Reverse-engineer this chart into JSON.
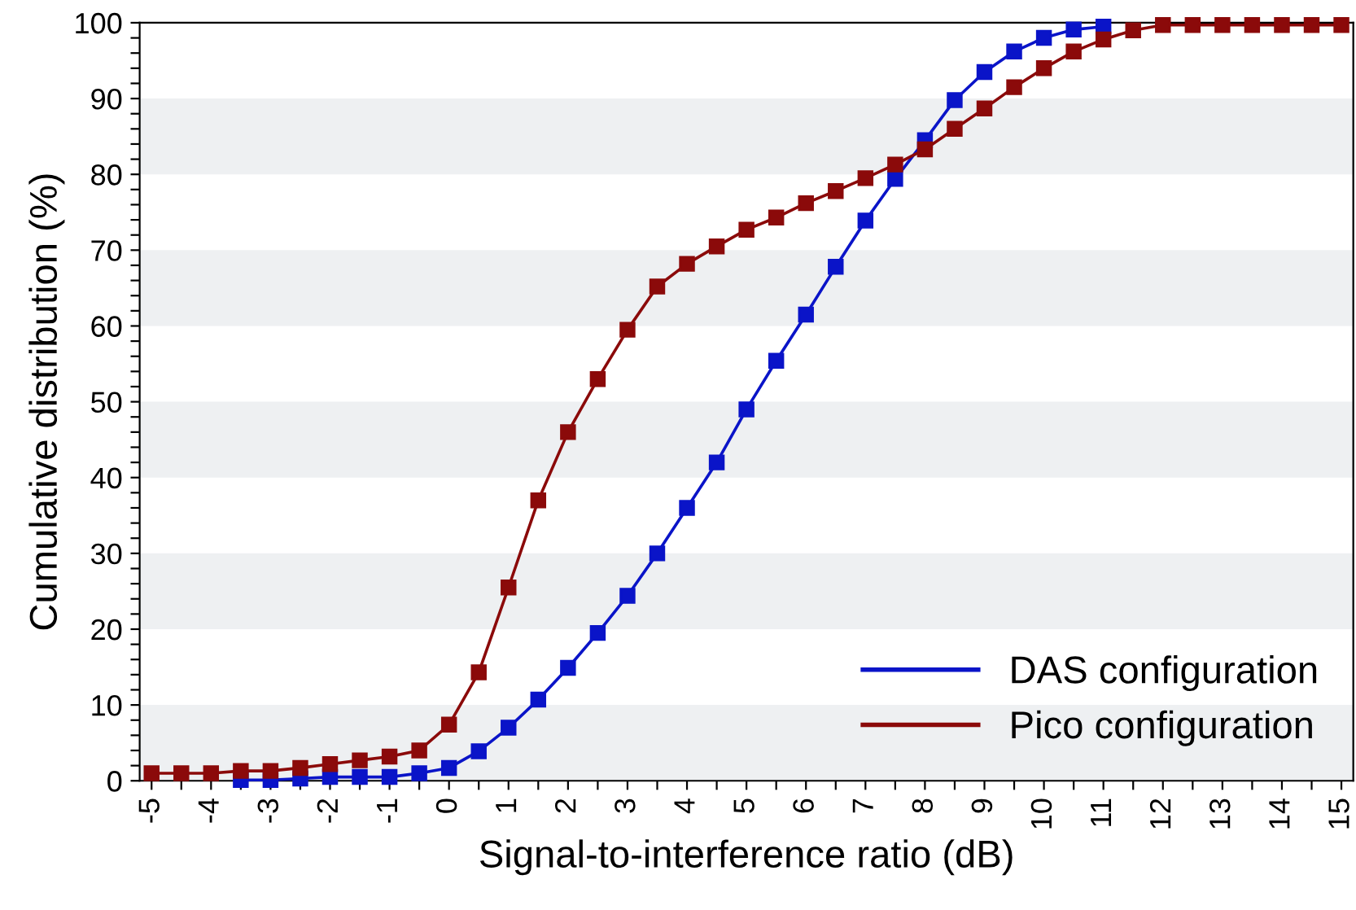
{
  "chart_data": {
    "type": "line",
    "xlabel": "Signal-to-interference ratio (dB)",
    "ylabel": "Cumulative distribution (%)",
    "x": [
      -5,
      -4.5,
      -4,
      -3.5,
      -3,
      -2.5,
      -2,
      -1.5,
      -1,
      -0.5,
      0,
      0.5,
      1,
      1.5,
      2,
      2.5,
      3,
      3.5,
      4,
      4.5,
      5,
      5.5,
      6,
      6.5,
      7,
      7.5,
      8,
      8.5,
      9,
      9.5,
      10,
      10.5,
      11,
      11.5,
      12,
      12.5,
      13,
      13.5,
      14,
      14.5,
      15
    ],
    "series": [
      {
        "name": "DAS configuration",
        "color": "#0a14c8",
        "values": [
          null,
          null,
          null,
          0.1,
          0.1,
          0.3,
          0.5,
          0.5,
          0.5,
          1.0,
          1.7,
          3.9,
          7,
          10.7,
          14.9,
          19.5,
          24.4,
          30,
          36,
          42,
          49,
          55.4,
          61.5,
          67.8,
          73.9,
          79.4,
          84.5,
          89.8,
          93.5,
          96.2,
          98,
          99.1,
          99.5,
          null,
          null,
          null,
          null,
          null,
          null,
          null,
          null
        ]
      },
      {
        "name": "Pico configuration",
        "color": "#8b0a0a",
        "values": [
          1,
          1,
          1,
          1.3,
          1.3,
          1.7,
          2.2,
          2.7,
          3.2,
          4,
          7.4,
          14.3,
          25.5,
          37,
          46,
          53,
          59.5,
          65.2,
          68.2,
          70.5,
          72.7,
          74.3,
          76.2,
          77.8,
          79.5,
          81.3,
          83.3,
          86,
          88.7,
          91.5,
          94,
          96.2,
          97.8,
          99,
          99.7,
          99.7,
          99.7,
          99.7,
          99.7,
          99.7,
          99.7
        ]
      }
    ],
    "xlim": [
      -5.2,
      15.2
    ],
    "ylim": [
      0,
      100
    ],
    "xticks": [
      -5,
      {
        "value": -4.5,
        "label": null
      },
      -4,
      {
        "value": -3.5,
        "label": null
      },
      -3,
      {
        "value": -2.5,
        "label": null
      },
      -2,
      {
        "value": -1.5,
        "label": null
      },
      -1,
      {
        "value": -0.5,
        "label": null
      },
      0,
      {
        "value": 0.5,
        "label": null
      },
      1,
      {
        "value": 1.5,
        "label": null
      },
      2,
      {
        "value": 2.5,
        "label": null
      },
      3,
      {
        "value": 3.5,
        "label": null
      },
      4,
      {
        "value": 4.5,
        "label": null
      },
      5,
      {
        "value": 5.5,
        "label": null
      },
      6,
      {
        "value": 6.5,
        "label": null
      },
      7,
      {
        "value": 7.5,
        "label": null
      },
      8,
      {
        "value": 8.5,
        "label": null
      },
      9,
      {
        "value": 9.5,
        "label": null
      },
      10,
      {
        "value": 10.5,
        "label": null
      },
      11,
      {
        "value": 11.5,
        "label": null
      },
      12,
      {
        "value": 12.5,
        "label": null
      },
      13,
      {
        "value": 13.5,
        "label": null
      },
      14,
      {
        "value": 14.5,
        "label": null
      },
      15
    ],
    "yticks": [
      0,
      {
        "value": 2,
        "label": null
      },
      {
        "value": 4,
        "label": null
      },
      {
        "value": 6,
        "label": null
      },
      {
        "value": 8,
        "label": null
      },
      10,
      {
        "value": 12,
        "label": null
      },
      {
        "value": 14,
        "label": null
      },
      {
        "value": 16,
        "label": null
      },
      {
        "value": 18,
        "label": null
      },
      20,
      {
        "value": 22,
        "label": null
      },
      {
        "value": 24,
        "label": null
      },
      {
        "value": 26,
        "label": null
      },
      {
        "value": 28,
        "label": null
      },
      30,
      {
        "value": 32,
        "label": null
      },
      {
        "value": 34,
        "label": null
      },
      {
        "value": 36,
        "label": null
      },
      {
        "value": 38,
        "label": null
      },
      40,
      {
        "value": 42,
        "label": null
      },
      {
        "value": 44,
        "label": null
      },
      {
        "value": 46,
        "label": null
      },
      {
        "value": 48,
        "label": null
      },
      50,
      {
        "value": 52,
        "label": null
      },
      {
        "value": 54,
        "label": null
      },
      {
        "value": 56,
        "label": null
      },
      {
        "value": 58,
        "label": null
      },
      60,
      {
        "value": 62,
        "label": null
      },
      {
        "value": 64,
        "label": null
      },
      {
        "value": 66,
        "label": null
      },
      {
        "value": 68,
        "label": null
      },
      70,
      {
        "value": 72,
        "label": null
      },
      {
        "value": 74,
        "label": null
      },
      {
        "value": 76,
        "label": null
      },
      {
        "value": 78,
        "label": null
      },
      80,
      {
        "value": 82,
        "label": null
      },
      {
        "value": 84,
        "label": null
      },
      {
        "value": 86,
        "label": null
      },
      {
        "value": 88,
        "label": null
      },
      90,
      {
        "value": 92,
        "label": null
      },
      {
        "value": 94,
        "label": null
      },
      {
        "value": 96,
        "label": null
      },
      {
        "value": 98,
        "label": null
      },
      100
    ],
    "bands": [
      {
        "axis": "y",
        "from": 0,
        "to": 10,
        "color": "#eef0f2"
      },
      {
        "axis": "y",
        "from": 20,
        "to": 30,
        "color": "#eef0f2"
      },
      {
        "axis": "y",
        "from": 40,
        "to": 50,
        "color": "#eef0f2"
      },
      {
        "axis": "y",
        "from": 60,
        "to": 70,
        "color": "#eef0f2"
      },
      {
        "axis": "y",
        "from": 80,
        "to": 90,
        "color": "#eef0f2"
      }
    ],
    "grid": false,
    "legend": "bottom right",
    "marker": "square",
    "line_style": "solid"
  }
}
